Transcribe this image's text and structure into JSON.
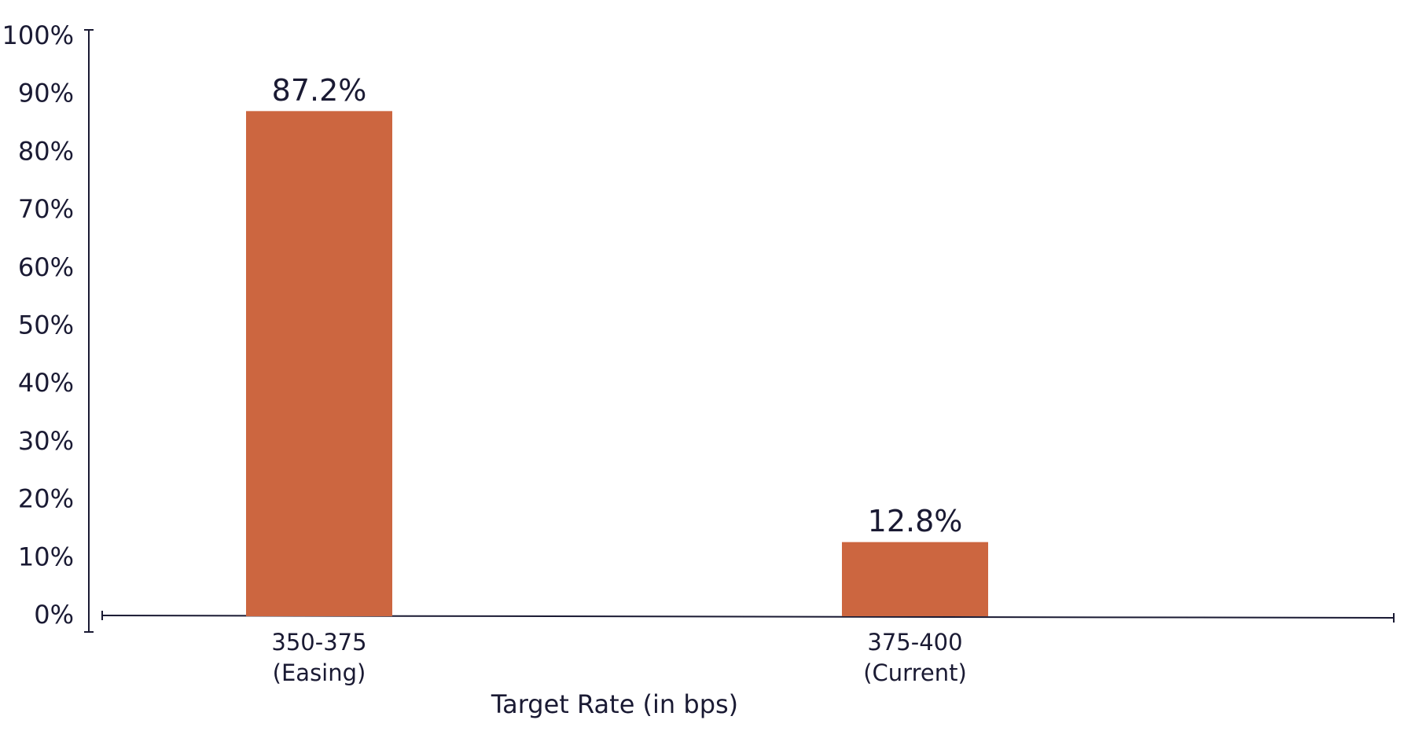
{
  "chart_data": {
    "type": "bar",
    "categories": [
      "350-375\n(Easing)",
      "375-400\n(Current)"
    ],
    "values": [
      87.2,
      12.8
    ],
    "value_labels": [
      "87.2%",
      "12.8%"
    ],
    "color": "#cc6640",
    "x_label": "Target Rate (in bps)",
    "ylim": [
      0,
      100
    ],
    "yticks": [
      {
        "value": 0,
        "label": "0%"
      },
      {
        "value": 10,
        "label": "10%"
      },
      {
        "value": 20,
        "label": "20%"
      },
      {
        "value": 30,
        "label": "30%"
      },
      {
        "value": 40,
        "label": "40%"
      },
      {
        "value": 50,
        "label": "50%"
      },
      {
        "value": 60,
        "label": "60%"
      },
      {
        "value": 70,
        "label": "70%"
      },
      {
        "value": 80,
        "label": "80%"
      },
      {
        "value": 90,
        "label": "90%"
      },
      {
        "value": 100,
        "label": "100%"
      }
    ],
    "grid": false
  }
}
